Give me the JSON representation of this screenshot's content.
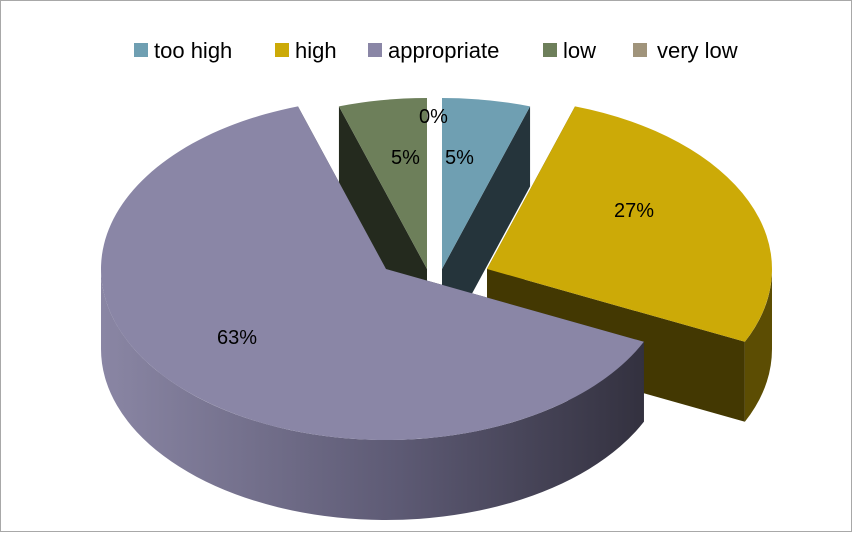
{
  "chart_data": {
    "type": "pie",
    "title": "",
    "categories": [
      "too high",
      "high",
      "appropriate",
      "low",
      "very low"
    ],
    "values": [
      5,
      27,
      63,
      5,
      0
    ],
    "labels": [
      "5%",
      "27%",
      "63%",
      "5%",
      "0%"
    ],
    "colors": [
      "#6f9fb2",
      "#ccaa07",
      "#8a86a6",
      "#6d7f5a",
      "#a0947b"
    ],
    "legend": "top",
    "exploded": true,
    "three_d": true
  }
}
